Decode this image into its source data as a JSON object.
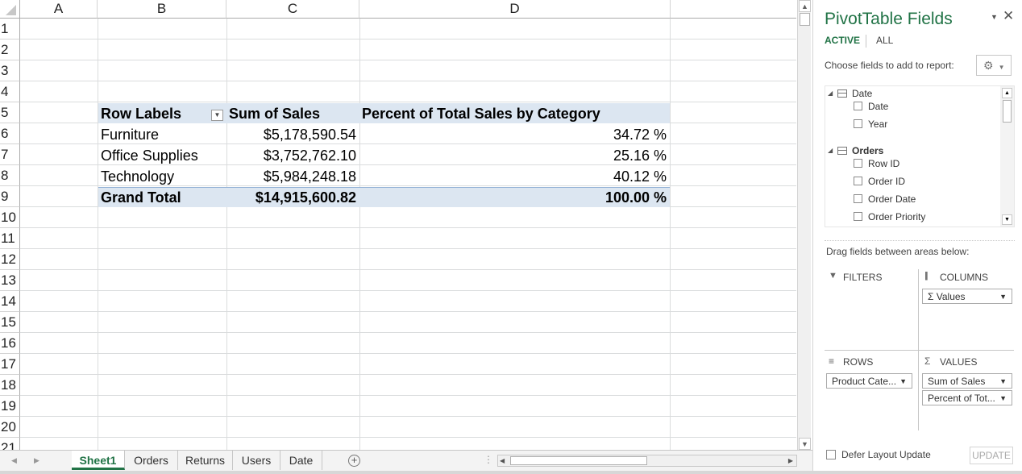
{
  "columns": [
    "A",
    "B",
    "C",
    "D"
  ],
  "rows": [
    "1",
    "2",
    "3",
    "4",
    "5",
    "6",
    "7",
    "8",
    "9",
    "10",
    "11",
    "12",
    "13",
    "14",
    "15",
    "16",
    "17",
    "18",
    "19",
    "20",
    "21"
  ],
  "pivot": {
    "headers": [
      "Row Labels",
      "Sum of Sales",
      "Percent of Total Sales by Category"
    ],
    "data": [
      {
        "label": "Furniture",
        "sales": "$5,178,590.54",
        "pct": "34.72 %"
      },
      {
        "label": "Office Supplies",
        "sales": "$3,752,762.10",
        "pct": "25.16 %"
      },
      {
        "label": "Technology",
        "sales": "$5,984,248.18",
        "pct": "40.12 %"
      }
    ],
    "total": {
      "label": "Grand Total",
      "sales": "$14,915,600.82",
      "pct": "100.00 %"
    }
  },
  "tabs": [
    "Sheet1",
    "Orders",
    "Returns",
    "Users",
    "Date"
  ],
  "active_tab": "Sheet1",
  "panel": {
    "title": "PivotTable Fields",
    "tab_active": "ACTIVE",
    "tab_all": "ALL",
    "choose_text": "Choose fields to add to report:",
    "groups": [
      {
        "name": "Date",
        "fields": [
          "Date",
          "Year"
        ]
      },
      {
        "name": "Orders",
        "fields": [
          "Row ID",
          "Order ID",
          "Order Date",
          "Order Priority"
        ]
      }
    ],
    "drag_text": "Drag fields between areas below:",
    "filters_label": "FILTERS",
    "columns_label": "COLUMNS",
    "rows_label": "ROWS",
    "values_label": "VALUES",
    "columns_items": [
      "Σ Values"
    ],
    "rows_items": [
      "Product Cate..."
    ],
    "values_items": [
      "Sum of Sales",
      "Percent of Tot..."
    ],
    "defer_label": "Defer Layout Update",
    "update_label": "UPDATE"
  },
  "colors": {
    "accent": "#217346",
    "pivot_header_bg": "#dce6f1"
  }
}
